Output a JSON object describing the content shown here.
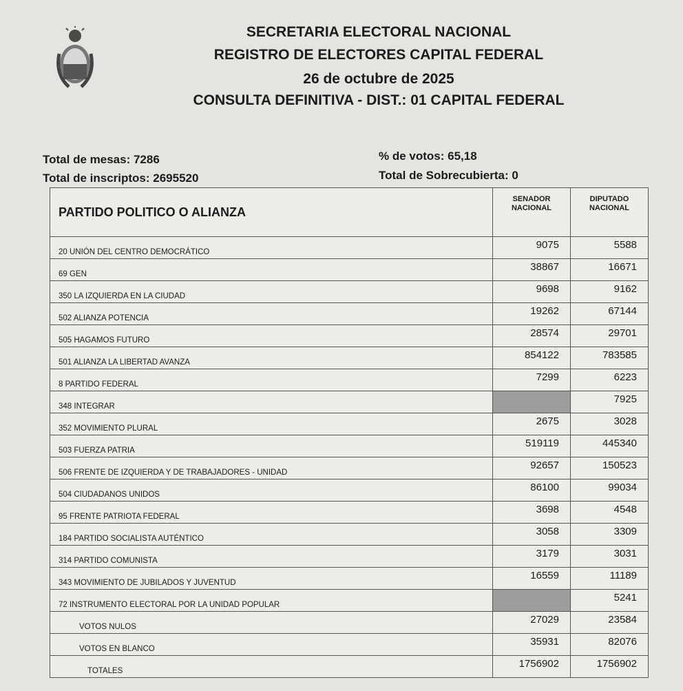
{
  "header": {
    "lines": [
      "SECRETARIA ELECTORAL NACIONAL",
      "REGISTRO DE ELECTORES CAPITAL FEDERAL",
      "26 de octubre de 2025",
      "CONSULTA DEFINITIVA - DIST.: 01  CAPITAL FEDERAL"
    ],
    "emblem": "escudo-nacional-argentina"
  },
  "summary": {
    "mesas": "Total de mesas: 7286",
    "inscriptos": "Total de inscriptos: 2695520",
    "votos": "% de votos: 65,18",
    "sobrecubierta": "Total de Sobrecubierta: 0"
  },
  "table": {
    "headers": {
      "party": "PARTIDO POLITICO O ALIANZA",
      "senador": "SENADOR\nNACIONAL",
      "diputado": "DIPUTADO\nNACIONAL"
    },
    "rows": [
      {
        "name": "20 UNIÓN DEL CENTRO DEMOCRÁTICO",
        "senador": "9075",
        "diputado": "5588"
      },
      {
        "name": "69 GEN",
        "senador": "38867",
        "diputado": "16671"
      },
      {
        "name": "350 LA IZQUIERDA EN LA CIUDAD",
        "senador": "9698",
        "diputado": "9162"
      },
      {
        "name": "502 ALIANZA POTENCIA",
        "senador": "19262",
        "diputado": "67144"
      },
      {
        "name": "505 HAGAMOS FUTURO",
        "senador": "28574",
        "diputado": "29701"
      },
      {
        "name": "501 ALIANZA LA LIBERTAD AVANZA",
        "senador": "854122",
        "diputado": "783585"
      },
      {
        "name": "8 PARTIDO FEDERAL",
        "senador": "7299",
        "diputado": "6223"
      },
      {
        "name": "348 INTEGRAR",
        "senador": null,
        "diputado": "7925"
      },
      {
        "name": "352 MOVIMIENTO PLURAL",
        "senador": "2675",
        "diputado": "3028"
      },
      {
        "name": "503 FUERZA PATRIA",
        "senador": "519119",
        "diputado": "445340"
      },
      {
        "name": "506 FRENTE DE IZQUIERDA Y DE TRABAJADORES - UNIDAD",
        "senador": "92657",
        "diputado": "150523"
      },
      {
        "name": "504 CIUDADANOS UNIDOS",
        "senador": "86100",
        "diputado": "99034"
      },
      {
        "name": "95 FRENTE PATRIOTA FEDERAL",
        "senador": "3698",
        "diputado": "4548"
      },
      {
        "name": "184 PARTIDO SOCIALISTA AUTÉNTICO",
        "senador": "3058",
        "diputado": "3309"
      },
      {
        "name": "314 PARTIDO COMUNISTA",
        "senador": "3179",
        "diputado": "3031"
      },
      {
        "name": "343 MOVIMIENTO DE JUBILADOS Y JUVENTUD",
        "senador": "16559",
        "diputado": "11189"
      },
      {
        "name": "72 INSTRUMENTO ELECTORAL POR LA UNIDAD POPULAR",
        "senador": null,
        "diputado": "5241"
      },
      {
        "name": "VOTOS NULOS",
        "senador": "27029",
        "diputado": "23584",
        "indent": 1
      },
      {
        "name": "VOTOS EN BLANCO",
        "senador": "35931",
        "diputado": "82076",
        "indent": 1
      },
      {
        "name": "TOTALES",
        "senador": "1756902",
        "diputado": "1756902",
        "indent": 2
      }
    ]
  }
}
